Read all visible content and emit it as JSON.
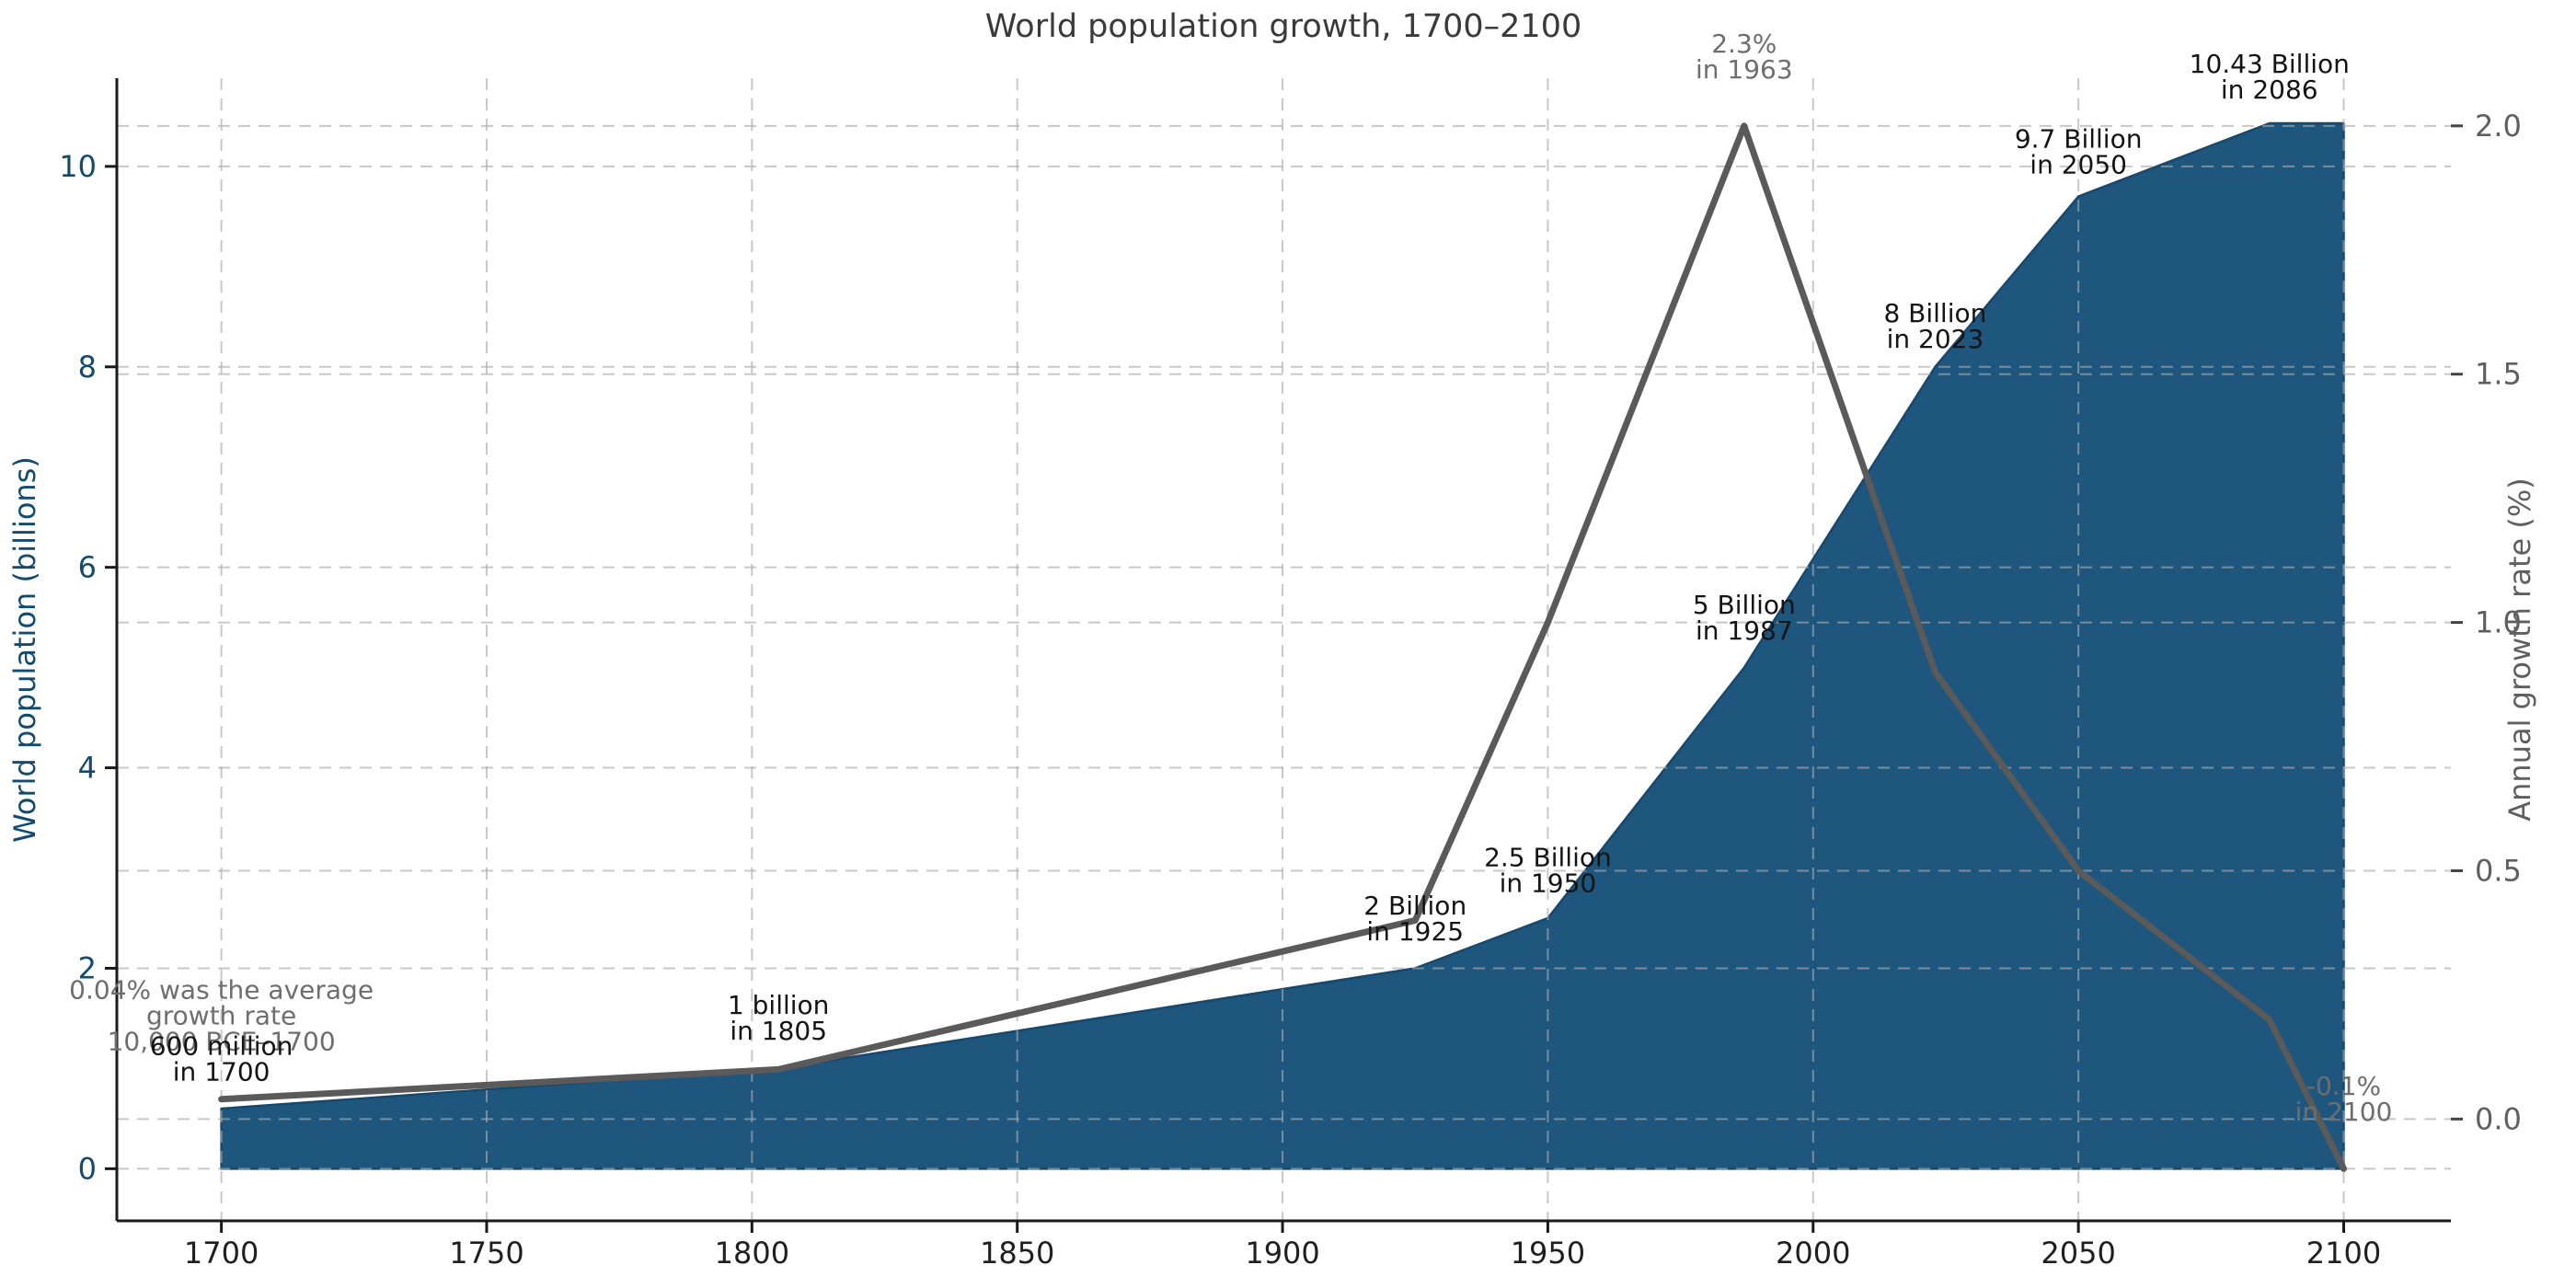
{
  "colors": {
    "background": "#ffffff",
    "area_fill": "#1e567d",
    "area_edge": "#17486e",
    "growth_line": "#5a5a5a",
    "grid": "#aaaaaa",
    "spine": "#1a1a1a",
    "left_axis": "#134a70",
    "right_axis": "#5f5f5f",
    "x_tick": "#1f1f1f",
    "title": "#3a3a3a",
    "annotation_black": "#141414",
    "annotation_gray": "#6e6e6e"
  },
  "chart_data": {
    "type": "area",
    "title": "World population growth, 1700–2100",
    "x_axis": {
      "tick_years": [
        1700,
        1750,
        1800,
        1850,
        1900,
        1950,
        2000,
        2050,
        2100
      ],
      "range": [
        1680.3,
        2120.2
      ]
    },
    "left_axis": {
      "label": "World population (billions)",
      "tick_labels": [
        "0",
        "2",
        "4",
        "6",
        "8",
        "10"
      ],
      "tick_values": [
        0,
        2,
        4,
        6,
        8,
        10
      ],
      "range": [
        -0.52,
        10.88
      ]
    },
    "right_axis": {
      "label": "Annual growth rate (%)",
      "tick_labels": [
        "0.0",
        "0.5",
        "1.0",
        "1.5",
        "2.0"
      ],
      "tick_values": [
        0,
        0.5,
        1,
        1.5,
        2
      ],
      "range": [
        -0.205,
        2.096
      ]
    },
    "grid": true,
    "legend": "none",
    "series": [
      {
        "name": "World population (billions)",
        "kind": "area",
        "axis": "left",
        "baseline": 0,
        "points": [
          [
            1700,
            0.6
          ],
          [
            1805,
            1.0
          ],
          [
            1925,
            2.0
          ],
          [
            1950,
            2.5
          ],
          [
            1987,
            5.0
          ],
          [
            2023,
            8.0
          ],
          [
            2050,
            9.7
          ],
          [
            2086,
            10.43
          ],
          [
            2100,
            10.43
          ]
        ]
      },
      {
        "name": "Annual growth rate (%)",
        "kind": "line",
        "axis": "right",
        "points": [
          [
            1700,
            0.04
          ],
          [
            1805,
            0.1
          ],
          [
            1925,
            0.4
          ],
          [
            1950,
            1.0
          ],
          [
            1987,
            2.0
          ],
          [
            2023,
            0.9
          ],
          [
            2050,
            0.5
          ],
          [
            2086,
            0.2
          ],
          [
            2100,
            -0.1
          ]
        ]
      }
    ],
    "annotations": [
      {
        "id": "avg-growth-pre-1700",
        "lines": [
          "0.04% was the average",
          "growth rate",
          "10,000 BCE–1700"
        ],
        "x_year": 1700,
        "y_billions": 1.53,
        "color": "gray"
      },
      {
        "id": "pop-1700",
        "lines": [
          "600 million",
          "in 1700"
        ],
        "x_year": 1700,
        "y_billions": 1.1,
        "color": "black"
      },
      {
        "id": "pop-1805",
        "lines": [
          "1 billion",
          "in 1805"
        ],
        "x_year": 1805,
        "y_billions": 1.51,
        "color": "black"
      },
      {
        "id": "pop-1925",
        "lines": [
          "2 Billion",
          "in 1925"
        ],
        "x_year": 1925,
        "y_billions": 2.5,
        "color": "black"
      },
      {
        "id": "pop-1950",
        "lines": [
          "2.5 Billion",
          "in 1950"
        ],
        "x_year": 1950,
        "y_billions": 2.98,
        "color": "black"
      },
      {
        "id": "pop-1987",
        "lines": [
          "5 Billion",
          "in 1987"
        ],
        "x_year": 1987,
        "y_billions": 5.5,
        "color": "black"
      },
      {
        "id": "pop-2023",
        "lines": [
          "8 Billion",
          "in 2023"
        ],
        "x_year": 2023,
        "y_billions": 8.41,
        "color": "black"
      },
      {
        "id": "pop-2050",
        "lines": [
          "9.7 Billion",
          "in 2050"
        ],
        "x_year": 2050,
        "y_billions": 10.15,
        "color": "black"
      },
      {
        "id": "pop-2086",
        "lines": [
          "10.43 Billion",
          "in 2086"
        ],
        "x_year": 2086,
        "y_billions": 10.9,
        "color": "black"
      },
      {
        "id": "peak-growth",
        "lines": [
          "2.3%",
          "in 1963"
        ],
        "x_year": 1987,
        "y_billions": 11.1,
        "color": "gray"
      },
      {
        "id": "growth-2100",
        "lines": [
          "-0.1%",
          "in 2100"
        ],
        "x_year": 2100,
        "y_billions": 0.7,
        "color": "gray"
      }
    ]
  }
}
